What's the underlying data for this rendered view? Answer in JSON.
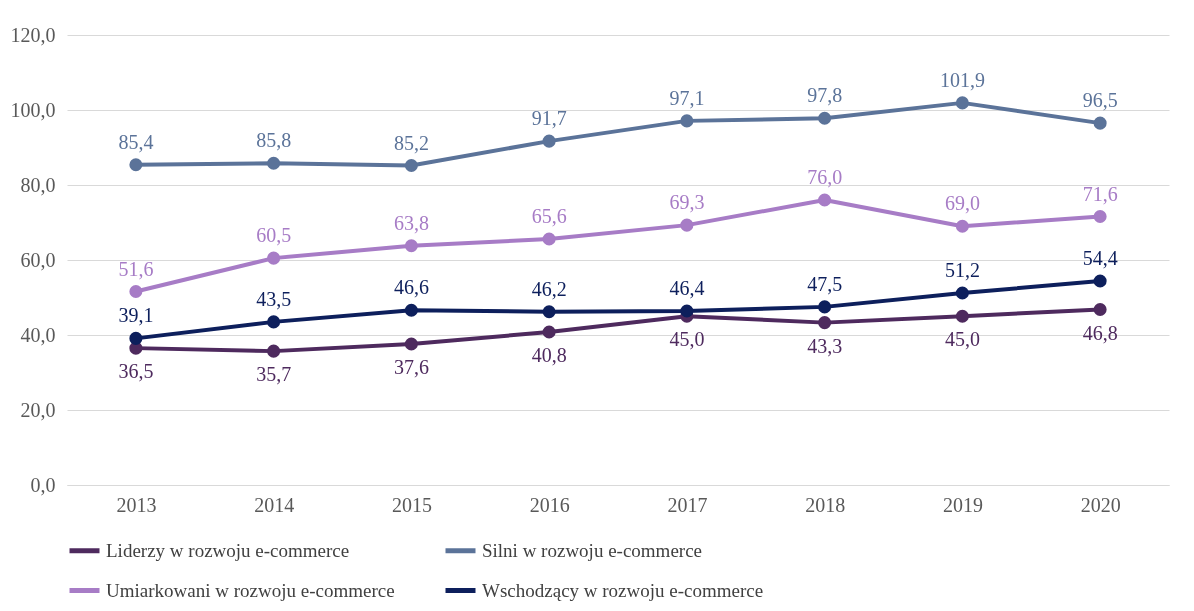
{
  "chart_data": {
    "type": "line",
    "categories": [
      "2013",
      "2014",
      "2015",
      "2016",
      "2017",
      "2018",
      "2019",
      "2020"
    ],
    "series": [
      {
        "name": "Liderzy w rozwoju e-commerce",
        "color": "#4e2a5e",
        "values": [
          36.5,
          35.7,
          37.6,
          40.8,
          45.0,
          43.3,
          45.0,
          46.8
        ],
        "value_labels": [
          "36,5",
          "35,7",
          "37,6",
          "40,8",
          "45,0",
          "43,3",
          "45,0",
          "46,8"
        ]
      },
      {
        "name": "Silni w rozwoju e-commerce",
        "color": "#5b7399",
        "values": [
          85.4,
          85.8,
          85.2,
          91.7,
          97.1,
          97.8,
          101.9,
          96.5
        ],
        "value_labels": [
          "85,4",
          "85,8",
          "85,2",
          "91,7",
          "97,1",
          "97,8",
          "101,9",
          "96,5"
        ]
      },
      {
        "name": "Umiarkowani w rozwoju e-commerce",
        "color": "#a77cc6",
        "values": [
          51.6,
          60.5,
          63.8,
          65.6,
          69.3,
          76.0,
          69.0,
          71.6
        ],
        "value_labels": [
          "51,6",
          "60,5",
          "63,8",
          "65,6",
          "69,3",
          "76,0",
          "69,0",
          "71,6"
        ]
      },
      {
        "name": "Wschodzący w rozwoju e-commerce",
        "color": "#0d1f5c",
        "values": [
          39.1,
          43.5,
          46.6,
          46.2,
          46.4,
          47.5,
          51.2,
          54.4
        ],
        "value_labels": [
          "39,1",
          "43,5",
          "46,6",
          "46,2",
          "46,4",
          "47,5",
          "51,2",
          "54,4"
        ]
      }
    ],
    "ylim": [
      0,
      120
    ],
    "yticks": [
      {
        "value": 0,
        "label": "0,0"
      },
      {
        "value": 20,
        "label": "20,0"
      },
      {
        "value": 40,
        "label": "40,0"
      },
      {
        "value": 60,
        "label": "60,0"
      },
      {
        "value": 80,
        "label": "80,0"
      },
      {
        "value": 100,
        "label": "100,0"
      },
      {
        "value": 120,
        "label": "120,0"
      }
    ],
    "grid": "y",
    "legend": "bottom",
    "marker": "circle",
    "line_style": "solid"
  }
}
